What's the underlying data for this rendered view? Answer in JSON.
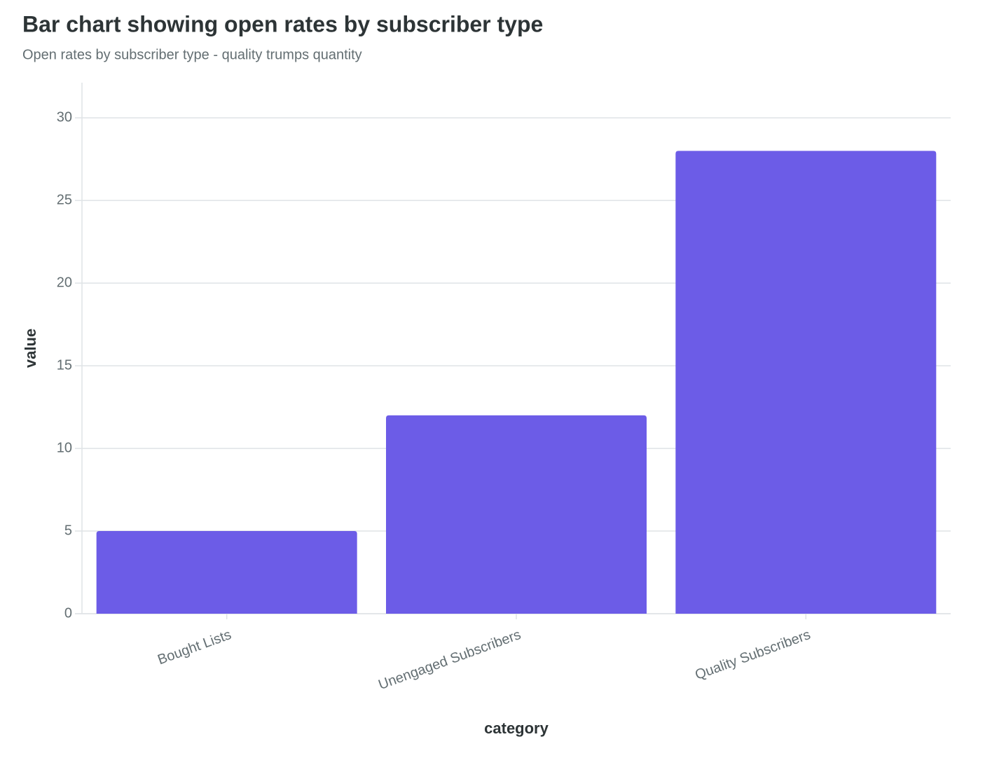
{
  "chart_data": {
    "type": "bar",
    "title": "Bar chart showing open rates by subscriber type",
    "subtitle": "Open rates by subscriber type - quality trumps quantity",
    "x_label": "category",
    "y_label": "value",
    "categories": [
      "Bought Lists",
      "Unengaged Subscribers",
      "Quality Subscribers"
    ],
    "values": [
      5,
      12,
      28
    ],
    "color": "#6c5ce7",
    "ylim": [
      0,
      32
    ],
    "yticks": [
      0,
      5,
      10,
      15,
      20,
      25,
      30
    ],
    "grid": true
  }
}
